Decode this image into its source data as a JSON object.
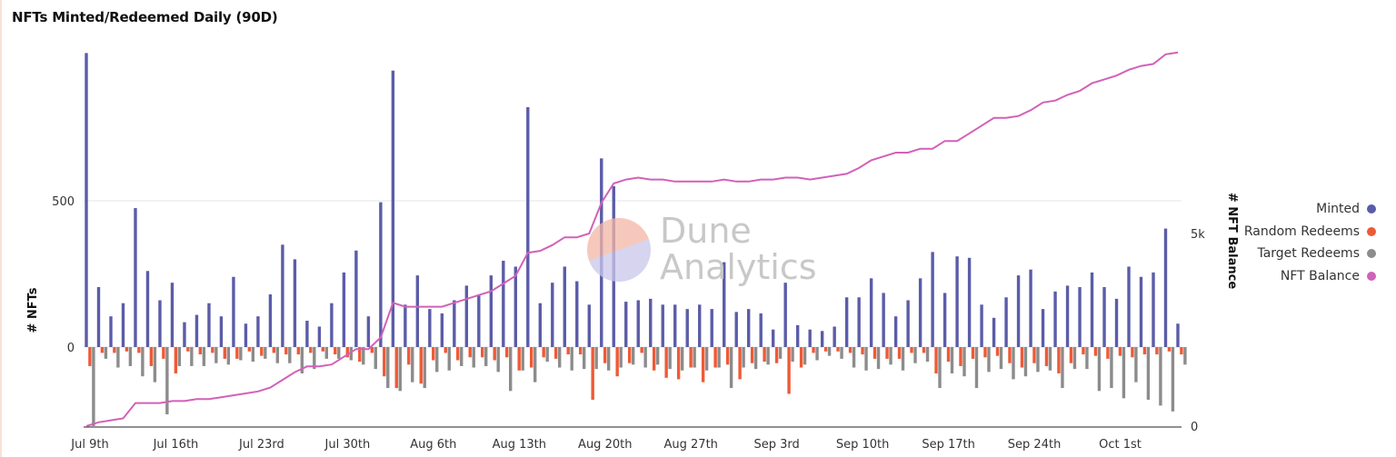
{
  "title": "NFTs Minted/Redeemed Daily (90D)",
  "watermark": {
    "line1": "Dune",
    "line2": "Analytics"
  },
  "legend": [
    {
      "label": "Minted",
      "color": "#5b5ca8"
    },
    {
      "label": "Random Redeems",
      "color": "#ee5a36"
    },
    {
      "label": "Target Redeems",
      "color": "#8c8c8c"
    },
    {
      "label": "NFT Balance",
      "color": "#d261b8"
    }
  ],
  "chart_data": {
    "type": "bar",
    "title": "NFTs Minted/Redeemed Daily (90D)",
    "ylabel": "# NFTs",
    "y2label": "# NFT Balance",
    "ylim": [
      -280,
      1000
    ],
    "y2lim": [
      0,
      10000
    ],
    "yticks": [
      0,
      500
    ],
    "y2ticks": [
      0,
      5000
    ],
    "ytick_labels": [
      "0",
      "500"
    ],
    "y2tick_labels": [
      "0",
      "5k"
    ],
    "grid": true,
    "legend_position": "right",
    "x_tick_labels": [
      "Jul 9th",
      "Jul 16th",
      "Jul 23rd",
      "Jul 30th",
      "Aug 6th",
      "Aug 13th",
      "Aug 20th",
      "Aug 27th",
      "Sep 3rd",
      "Sep 10th",
      "Sep 17th",
      "Sep 24th",
      "Oct 1st"
    ],
    "x_start": "2021-07-09",
    "series": [
      {
        "name": "Minted",
        "type": "bar",
        "color": "#5b5ca8",
        "values": [
          1005,
          205,
          105,
          150,
          475,
          260,
          160,
          220,
          85,
          110,
          150,
          105,
          240,
          80,
          105,
          180,
          350,
          300,
          90,
          70,
          150,
          255,
          330,
          105,
          495,
          945,
          145,
          245,
          130,
          115,
          160,
          210,
          180,
          245,
          295,
          275,
          820,
          150,
          220,
          275,
          225,
          145,
          645,
          550,
          155,
          160,
          165,
          145,
          145,
          130,
          145,
          130,
          290,
          120,
          130,
          115,
          60,
          220,
          75,
          60,
          55,
          70,
          170,
          170,
          235,
          185,
          105,
          160,
          235,
          325,
          185,
          310,
          305,
          145,
          100,
          170,
          245,
          265,
          130,
          190,
          210,
          205,
          255,
          205,
          165,
          275,
          240,
          255,
          405,
          80
        ],
        "line": null
      },
      {
        "name": "Random Redeems",
        "type": "bar",
        "color": "#ee5a36",
        "values": [
          -65,
          -20,
          -20,
          -15,
          -20,
          -65,
          -40,
          -90,
          -15,
          -25,
          -20,
          -40,
          -40,
          -15,
          -30,
          -20,
          -25,
          -25,
          -20,
          -15,
          -25,
          -35,
          -50,
          -20,
          -100,
          -140,
          -60,
          -125,
          -45,
          -20,
          -45,
          -35,
          -35,
          -45,
          -35,
          -80,
          -70,
          -35,
          -40,
          -25,
          -25,
          -180,
          -55,
          -100,
          -55,
          -20,
          -80,
          -105,
          -110,
          -70,
          -120,
          -70,
          -60,
          -110,
          -55,
          -50,
          -55,
          -160,
          -70,
          -20,
          -15,
          -15,
          -20,
          -25,
          -40,
          -40,
          -40,
          -20,
          -20,
          -90,
          -50,
          -65,
          -40,
          -35,
          -30,
          -55,
          -70,
          -55,
          -65,
          -90,
          -55,
          -25,
          -30,
          -40,
          -30,
          -35,
          -25,
          -25,
          -15,
          -25
        ],
        "line": null
      },
      {
        "name": "Target Redeems",
        "type": "bar",
        "color": "#8c8c8c",
        "values": [
          -270,
          -40,
          -70,
          -65,
          -100,
          -120,
          -230,
          -65,
          -65,
          -65,
          -55,
          -60,
          -45,
          -50,
          -40,
          -55,
          -55,
          -90,
          -75,
          -40,
          -40,
          -45,
          -60,
          -75,
          -140,
          -150,
          -120,
          -140,
          -85,
          -80,
          -65,
          -70,
          -65,
          -85,
          -150,
          -80,
          -120,
          -50,
          -70,
          -80,
          -75,
          -75,
          -80,
          -70,
          -60,
          -70,
          -60,
          -75,
          -80,
          -70,
          -80,
          -70,
          -140,
          -70,
          -75,
          -60,
          -40,
          -50,
          -60,
          -45,
          -30,
          -40,
          -70,
          -80,
          -75,
          -60,
          -80,
          -55,
          -50,
          -140,
          -90,
          -100,
          -140,
          -85,
          -75,
          -110,
          -100,
          -85,
          -80,
          -140,
          -75,
          -75,
          -150,
          -140,
          -175,
          -120,
          -180,
          -200,
          -220,
          -60
        ]
      },
      {
        "name": "NFT Balance",
        "type": "line",
        "axis": "right",
        "color": "#d261b8",
        "values": [
          0,
          100,
          150,
          200,
          600,
          600,
          600,
          650,
          650,
          700,
          700,
          750,
          800,
          850,
          900,
          1000,
          1200,
          1400,
          1550,
          1550,
          1600,
          1800,
          2000,
          2000,
          2300,
          3200,
          3100,
          3100,
          3100,
          3100,
          3200,
          3300,
          3400,
          3500,
          3700,
          3900,
          4500,
          4550,
          4700,
          4900,
          4900,
          5000,
          5800,
          6300,
          6400,
          6450,
          6400,
          6400,
          6350,
          6350,
          6350,
          6350,
          6400,
          6350,
          6350,
          6400,
          6400,
          6450,
          6450,
          6400,
          6450,
          6500,
          6550,
          6700,
          6900,
          7000,
          7100,
          7100,
          7200,
          7200,
          7400,
          7400,
          7600,
          7800,
          8000,
          8000,
          8050,
          8200,
          8400,
          8450,
          8600,
          8700,
          8900,
          9000,
          9100,
          9250,
          9350,
          9400,
          9650,
          9700
        ]
      }
    ]
  }
}
